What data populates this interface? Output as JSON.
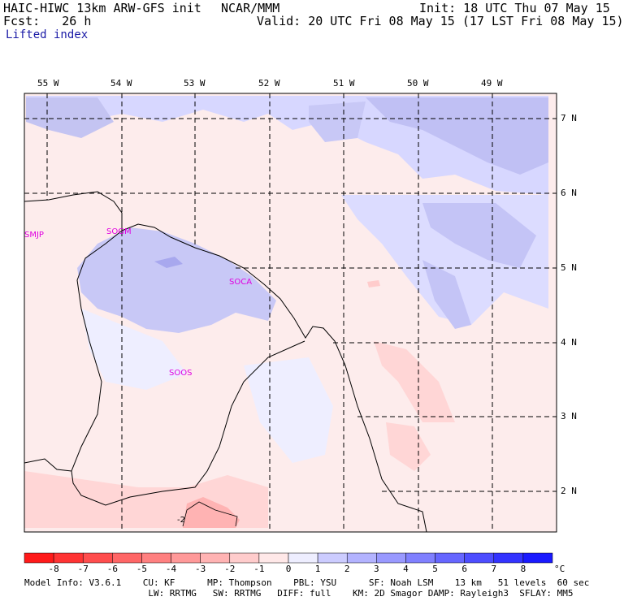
{
  "header": {
    "model": "HAIC-HIWC 13km ARW-GFS init",
    "org": "NCAR/MMM",
    "init": "Init: 18 UTC Thu 07 May 15",
    "fcst": "Fcst:   26 h",
    "valid": "Valid: 20 UTC Fri 08 May 15 (17 LST Fri 08 May 15)",
    "field": "Lifted index"
  },
  "lon_labels": [
    "55 W",
    "54 W",
    "53 W",
    "52 W",
    "51 W",
    "50 W",
    "49 W"
  ],
  "lat_labels": [
    "7 N",
    "6 N",
    "5 N",
    "4 N",
    "3 N",
    "2 N"
  ],
  "stations": [
    "SMJP",
    "SOGM",
    "SOCA",
    "SOOS"
  ],
  "contour_label": "-2",
  "colorbar": {
    "ticks": [
      "-8",
      "-7",
      "-6",
      "-5",
      "-4",
      "-3",
      "-2",
      "-1",
      "0",
      "1",
      "2",
      "3",
      "4",
      "5",
      "6",
      "7",
      "8"
    ],
    "unit": "°C",
    "colors": [
      "#ff1a1a",
      "#ff3333",
      "#ff4d4d",
      "#ff6666",
      "#ff8080",
      "#ff9999",
      "#ffb3b3",
      "#ffcccc",
      "#ffe8e8",
      "#eeeeff",
      "#ccccff",
      "#b3b3ff",
      "#9999ff",
      "#8080ff",
      "#6666ff",
      "#4d4dff",
      "#3333ff",
      "#1a1aff"
    ]
  },
  "model_info": {
    "line1": "Model Info: V3.6.1    CU: KF      MP: Thompson    PBL: YSU      SF: Noah LSM    13 km   51 levels  60 sec",
    "line2": "                       LW: RRTMG   SW: RRTMG   DIFF: full    KM: 2D Smagor DAMP: Rayleigh3  SFLAY: MM5"
  }
}
